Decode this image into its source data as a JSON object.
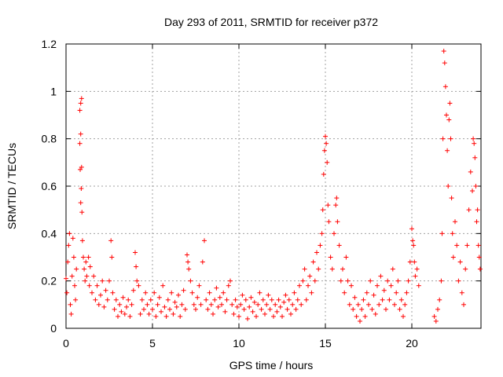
{
  "chart_data": {
    "type": "scatter",
    "title": "Day 293 of 2011, SRMTID for receiver p372",
    "xlabel": "GPS time / hours",
    "ylabel": "SRMTID / TECUs",
    "xlim": [
      0,
      24
    ],
    "ylim": [
      0,
      1.2
    ],
    "x_ticks": [
      0,
      5,
      10,
      15,
      20
    ],
    "x_tick_labels": [
      "0",
      "5",
      "10",
      "15",
      "20"
    ],
    "y_ticks": [
      0,
      0.2,
      0.4,
      0.6,
      0.8,
      1,
      1.2
    ],
    "y_tick_labels": [
      "0",
      "0.2",
      "0.4",
      "0.6",
      "0.8",
      "1",
      "1.2"
    ],
    "grid": true,
    "marker": "+",
    "color": "#ff0000",
    "series": [
      {
        "name": "SRMTID",
        "points": [
          [
            0.0,
            0.21
          ],
          [
            0.05,
            0.15
          ],
          [
            0.1,
            0.28
          ],
          [
            0.15,
            0.35
          ],
          [
            0.2,
            0.4
          ],
          [
            0.25,
            0.1
          ],
          [
            0.3,
            0.06
          ],
          [
            0.35,
            0.22
          ],
          [
            0.4,
            0.38
          ],
          [
            0.45,
            0.3
          ],
          [
            0.5,
            0.18
          ],
          [
            0.55,
            0.12
          ],
          [
            0.6,
            0.25
          ],
          [
            0.8,
            0.92
          ],
          [
            0.85,
            0.95
          ],
          [
            0.9,
            0.97
          ],
          [
            0.85,
            0.82
          ],
          [
            0.8,
            0.78
          ],
          [
            0.82,
            0.67
          ],
          [
            0.9,
            0.68
          ],
          [
            0.88,
            0.59
          ],
          [
            0.85,
            0.53
          ],
          [
            0.92,
            0.49
          ],
          [
            0.95,
            0.37
          ],
          [
            1.0,
            0.3
          ],
          [
            1.05,
            0.25
          ],
          [
            1.1,
            0.2
          ],
          [
            1.15,
            0.28
          ],
          [
            1.2,
            0.22
          ],
          [
            1.3,
            0.3
          ],
          [
            1.35,
            0.18
          ],
          [
            1.4,
            0.26
          ],
          [
            1.5,
            0.15
          ],
          [
            1.6,
            0.22
          ],
          [
            1.7,
            0.12
          ],
          [
            1.8,
            0.18
          ],
          [
            1.9,
            0.1
          ],
          [
            2.0,
            0.14
          ],
          [
            2.1,
            0.2
          ],
          [
            2.2,
            0.09
          ],
          [
            2.3,
            0.16
          ],
          [
            2.4,
            0.12
          ],
          [
            2.5,
            0.2
          ],
          [
            2.6,
            0.37
          ],
          [
            2.65,
            0.3
          ],
          [
            2.7,
            0.15
          ],
          [
            2.8,
            0.08
          ],
          [
            2.9,
            0.12
          ],
          [
            3.0,
            0.05
          ],
          [
            3.1,
            0.1
          ],
          [
            3.2,
            0.07
          ],
          [
            3.3,
            0.13
          ],
          [
            3.4,
            0.06
          ],
          [
            3.5,
            0.09
          ],
          [
            3.6,
            0.12
          ],
          [
            3.7,
            0.05
          ],
          [
            3.8,
            0.1
          ],
          [
            3.9,
            0.16
          ],
          [
            4.0,
            0.32
          ],
          [
            4.05,
            0.26
          ],
          [
            4.1,
            0.2
          ],
          [
            4.2,
            0.18
          ],
          [
            4.3,
            0.06
          ],
          [
            4.4,
            0.12
          ],
          [
            4.5,
            0.08
          ],
          [
            4.6,
            0.15
          ],
          [
            4.7,
            0.1
          ],
          [
            4.8,
            0.06
          ],
          [
            4.9,
            0.12
          ],
          [
            5.0,
            0.08
          ],
          [
            5.1,
            0.15
          ],
          [
            5.2,
            0.05
          ],
          [
            5.3,
            0.1
          ],
          [
            5.4,
            0.13
          ],
          [
            5.5,
            0.07
          ],
          [
            5.6,
            0.18
          ],
          [
            5.7,
            0.09
          ],
          [
            5.8,
            0.05
          ],
          [
            5.9,
            0.12
          ],
          [
            6.0,
            0.08
          ],
          [
            6.1,
            0.15
          ],
          [
            6.2,
            0.06
          ],
          [
            6.3,
            0.11
          ],
          [
            6.4,
            0.09
          ],
          [
            6.5,
            0.14
          ],
          [
            6.6,
            0.05
          ],
          [
            6.7,
            0.1
          ],
          [
            6.8,
            0.16
          ],
          [
            6.9,
            0.08
          ],
          [
            7.0,
            0.31
          ],
          [
            7.05,
            0.28
          ],
          [
            7.1,
            0.25
          ],
          [
            7.2,
            0.2
          ],
          [
            7.3,
            0.15
          ],
          [
            7.4,
            0.1
          ],
          [
            7.5,
            0.08
          ],
          [
            7.6,
            0.13
          ],
          [
            7.7,
            0.18
          ],
          [
            7.8,
            0.1
          ],
          [
            7.9,
            0.28
          ],
          [
            8.0,
            0.37
          ],
          [
            8.1,
            0.12
          ],
          [
            8.2,
            0.08
          ],
          [
            8.3,
            0.15
          ],
          [
            8.4,
            0.1
          ],
          [
            8.5,
            0.06
          ],
          [
            8.6,
            0.12
          ],
          [
            8.7,
            0.17
          ],
          [
            8.8,
            0.09
          ],
          [
            8.9,
            0.13
          ],
          [
            9.0,
            0.1
          ],
          [
            9.1,
            0.15
          ],
          [
            9.2,
            0.07
          ],
          [
            9.3,
            0.12
          ],
          [
            9.4,
            0.18
          ],
          [
            9.5,
            0.2
          ],
          [
            9.6,
            0.1
          ],
          [
            9.7,
            0.06
          ],
          [
            9.8,
            0.12
          ],
          [
            9.9,
            0.09
          ],
          [
            10.0,
            0.05
          ],
          [
            10.1,
            0.1
          ],
          [
            10.2,
            0.14
          ],
          [
            10.3,
            0.08
          ],
          [
            10.4,
            0.12
          ],
          [
            10.5,
            0.04
          ],
          [
            10.6,
            0.09
          ],
          [
            10.7,
            0.13
          ],
          [
            10.8,
            0.07
          ],
          [
            10.9,
            0.11
          ],
          [
            11.0,
            0.05
          ],
          [
            11.1,
            0.1
          ],
          [
            11.2,
            0.15
          ],
          [
            11.3,
            0.08
          ],
          [
            11.4,
            0.12
          ],
          [
            11.5,
            0.06
          ],
          [
            11.6,
            0.1
          ],
          [
            11.7,
            0.14
          ],
          [
            11.8,
            0.08
          ],
          [
            11.9,
            0.12
          ],
          [
            12.0,
            0.05
          ],
          [
            12.1,
            0.1
          ],
          [
            12.2,
            0.07
          ],
          [
            12.3,
            0.12
          ],
          [
            12.4,
            0.09
          ],
          [
            12.5,
            0.05
          ],
          [
            12.6,
            0.11
          ],
          [
            12.7,
            0.14
          ],
          [
            12.8,
            0.08
          ],
          [
            12.9,
            0.12
          ],
          [
            13.0,
            0.06
          ],
          [
            13.1,
            0.1
          ],
          [
            13.2,
            0.15
          ],
          [
            13.3,
            0.08
          ],
          [
            13.4,
            0.12
          ],
          [
            13.5,
            0.18
          ],
          [
            13.6,
            0.1
          ],
          [
            13.7,
            0.2
          ],
          [
            13.8,
            0.25
          ],
          [
            13.9,
            0.12
          ],
          [
            14.0,
            0.18
          ],
          [
            14.1,
            0.22
          ],
          [
            14.2,
            0.15
          ],
          [
            14.3,
            0.28
          ],
          [
            14.4,
            0.2
          ],
          [
            14.5,
            0.32
          ],
          [
            14.6,
            0.25
          ],
          [
            14.7,
            0.35
          ],
          [
            14.8,
            0.4
          ],
          [
            14.85,
            0.5
          ],
          [
            14.9,
            0.65
          ],
          [
            14.95,
            0.75
          ],
          [
            15.0,
            0.81
          ],
          [
            15.05,
            0.78
          ],
          [
            15.1,
            0.7
          ],
          [
            15.15,
            0.52
          ],
          [
            15.2,
            0.45
          ],
          [
            15.3,
            0.3
          ],
          [
            15.4,
            0.25
          ],
          [
            15.5,
            0.4
          ],
          [
            15.6,
            0.52
          ],
          [
            15.65,
            0.55
          ],
          [
            15.7,
            0.45
          ],
          [
            15.8,
            0.35
          ],
          [
            15.9,
            0.2
          ],
          [
            16.0,
            0.25
          ],
          [
            16.1,
            0.15
          ],
          [
            16.2,
            0.3
          ],
          [
            16.3,
            0.2
          ],
          [
            16.4,
            0.1
          ],
          [
            16.5,
            0.18
          ],
          [
            16.6,
            0.08
          ],
          [
            16.7,
            0.13
          ],
          [
            16.8,
            0.05
          ],
          [
            16.9,
            0.1
          ],
          [
            17.0,
            0.03
          ],
          [
            17.1,
            0.08
          ],
          [
            17.2,
            0.12
          ],
          [
            17.3,
            0.05
          ],
          [
            17.4,
            0.15
          ],
          [
            17.5,
            0.1
          ],
          [
            17.6,
            0.2
          ],
          [
            17.7,
            0.08
          ],
          [
            17.8,
            0.14
          ],
          [
            17.9,
            0.06
          ],
          [
            18.0,
            0.18
          ],
          [
            18.1,
            0.1
          ],
          [
            18.2,
            0.22
          ],
          [
            18.3,
            0.12
          ],
          [
            18.4,
            0.16
          ],
          [
            18.5,
            0.08
          ],
          [
            18.6,
            0.2
          ],
          [
            18.7,
            0.12
          ],
          [
            18.8,
            0.18
          ],
          [
            18.9,
            0.25
          ],
          [
            19.0,
            0.1
          ],
          [
            19.1,
            0.15
          ],
          [
            19.2,
            0.2
          ],
          [
            19.3,
            0.08
          ],
          [
            19.4,
            0.12
          ],
          [
            19.5,
            0.05
          ],
          [
            19.6,
            0.1
          ],
          [
            19.7,
            0.15
          ],
          [
            19.8,
            0.2
          ],
          [
            19.9,
            0.28
          ],
          [
            20.0,
            0.42
          ],
          [
            20.05,
            0.37
          ],
          [
            20.1,
            0.35
          ],
          [
            20.15,
            0.28
          ],
          [
            20.2,
            0.22
          ],
          [
            20.3,
            0.25
          ],
          [
            20.4,
            0.18
          ],
          [
            21.3,
            0.05
          ],
          [
            21.4,
            0.03
          ],
          [
            21.5,
            0.08
          ],
          [
            21.6,
            0.12
          ],
          [
            21.7,
            0.2
          ],
          [
            21.75,
            0.4
          ],
          [
            21.8,
            0.8
          ],
          [
            21.85,
            1.17
          ],
          [
            21.9,
            1.12
          ],
          [
            21.95,
            1.02
          ],
          [
            22.0,
            0.9
          ],
          [
            22.05,
            0.75
          ],
          [
            22.1,
            0.6
          ],
          [
            22.15,
            0.88
          ],
          [
            22.2,
            0.95
          ],
          [
            22.25,
            0.8
          ],
          [
            22.3,
            0.55
          ],
          [
            22.35,
            0.4
          ],
          [
            22.4,
            0.3
          ],
          [
            22.5,
            0.45
          ],
          [
            22.6,
            0.35
          ],
          [
            22.7,
            0.2
          ],
          [
            22.8,
            0.28
          ],
          [
            22.9,
            0.15
          ],
          [
            23.0,
            0.1
          ],
          [
            23.1,
            0.25
          ],
          [
            23.2,
            0.35
          ],
          [
            23.3,
            0.5
          ],
          [
            23.4,
            0.66
          ],
          [
            23.5,
            0.58
          ],
          [
            23.55,
            0.8
          ],
          [
            23.6,
            0.78
          ],
          [
            23.65,
            0.72
          ],
          [
            23.7,
            0.6
          ],
          [
            23.75,
            0.45
          ],
          [
            23.8,
            0.5
          ],
          [
            23.85,
            0.35
          ],
          [
            23.9,
            0.3
          ],
          [
            23.95,
            0.25
          ]
        ]
      }
    ]
  }
}
